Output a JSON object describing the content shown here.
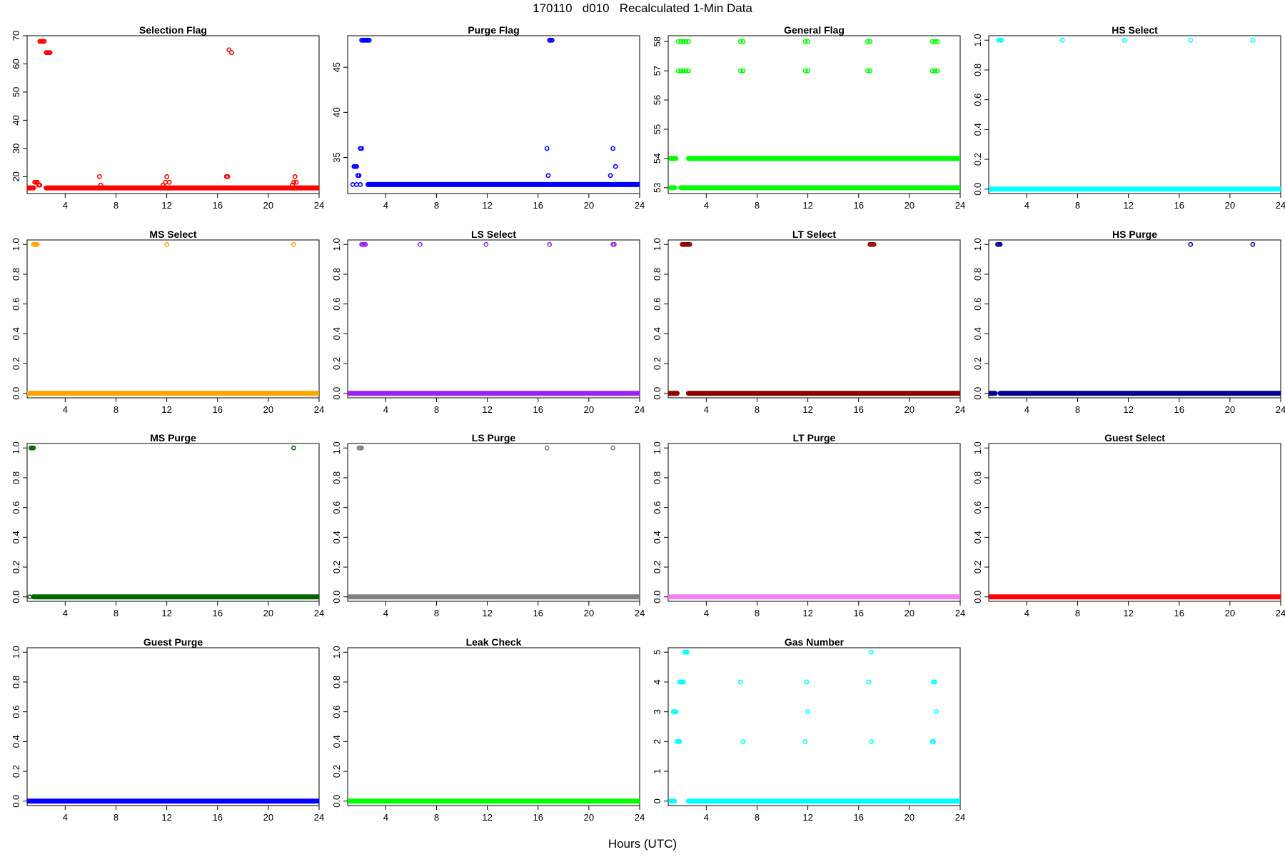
{
  "page": {
    "title": "170110   d010   Recalculated 1-Min Data",
    "x_caption": "Hours (UTC)"
  },
  "chart_data": [
    {
      "type": "scatter",
      "title": "Selection Flag",
      "color": "#ff0000",
      "xlim": [
        1,
        24
      ],
      "ylim": [
        14,
        70
      ],
      "xticks": [
        4,
        8,
        12,
        16,
        20,
        24
      ],
      "yticks": [
        20,
        30,
        40,
        50,
        60,
        70
      ],
      "baseline": {
        "y": 16,
        "x_ranges": [
          [
            1.1,
            1.5
          ],
          [
            2.5,
            24
          ]
        ]
      },
      "points": [
        [
          2.0,
          68
        ],
        [
          2.1,
          68
        ],
        [
          2.2,
          68
        ],
        [
          2.3,
          68
        ],
        [
          2.35,
          68
        ],
        [
          2.5,
          64
        ],
        [
          2.6,
          64
        ],
        [
          2.7,
          64
        ],
        [
          2.8,
          64
        ],
        [
          1.6,
          18
        ],
        [
          1.7,
          18
        ],
        [
          1.8,
          18
        ],
        [
          1.9,
          17
        ],
        [
          2.0,
          17
        ],
        [
          6.7,
          20
        ],
        [
          6.8,
          17
        ],
        [
          11.7,
          17
        ],
        [
          11.9,
          18
        ],
        [
          12.0,
          20
        ],
        [
          12.2,
          18
        ],
        [
          16.7,
          20
        ],
        [
          16.8,
          20
        ],
        [
          16.9,
          65
        ],
        [
          17.1,
          64
        ],
        [
          21.9,
          17
        ],
        [
          22.0,
          18
        ],
        [
          22.1,
          20
        ],
        [
          22.2,
          18
        ]
      ]
    },
    {
      "type": "scatter",
      "title": "Purge Flag",
      "color": "#0000ff",
      "xlim": [
        1,
        24
      ],
      "ylim": [
        31,
        48.5
      ],
      "xticks": [
        4,
        8,
        12,
        16,
        20,
        24
      ],
      "yticks": [
        35,
        40,
        45
      ],
      "baseline": {
        "y": 32,
        "x_ranges": [
          [
            2.6,
            17.1
          ],
          [
            17.2,
            24
          ]
        ]
      },
      "points": [
        [
          2.1,
          48
        ],
        [
          2.2,
          48
        ],
        [
          2.3,
          48
        ],
        [
          2.4,
          48
        ],
        [
          2.5,
          48
        ],
        [
          2.6,
          48
        ],
        [
          2.7,
          48
        ],
        [
          16.9,
          48
        ],
        [
          17.0,
          48
        ],
        [
          17.1,
          48
        ],
        [
          1.4,
          32
        ],
        [
          1.7,
          32
        ],
        [
          2.0,
          32
        ],
        [
          1.5,
          34
        ],
        [
          1.6,
          34
        ],
        [
          1.7,
          34
        ],
        [
          1.8,
          33
        ],
        [
          1.9,
          33
        ],
        [
          2.0,
          36
        ],
        [
          2.1,
          36
        ],
        [
          16.7,
          36
        ],
        [
          16.8,
          33
        ],
        [
          21.7,
          33
        ],
        [
          21.9,
          36
        ],
        [
          22.1,
          34
        ]
      ]
    },
    {
      "type": "scatter",
      "title": "General Flag",
      "color": "#00ff00",
      "xlim": [
        1,
        24
      ],
      "ylim": [
        52.8,
        58.2
      ],
      "xticks": [
        4,
        8,
        12,
        16,
        20,
        24
      ],
      "yticks": [
        53,
        54,
        55,
        56,
        57,
        58
      ],
      "baseline": {
        "y": 53,
        "x_ranges": [
          [
            1.2,
            1.5
          ],
          [
            2.0,
            24
          ]
        ]
      },
      "band_54": {
        "y": 54,
        "x_ranges": [
          [
            1.2,
            1.6
          ],
          [
            2.6,
            24
          ]
        ]
      },
      "points": [
        [
          1.8,
          58
        ],
        [
          2.0,
          58
        ],
        [
          2.2,
          58
        ],
        [
          2.4,
          58
        ],
        [
          2.6,
          58
        ],
        [
          6.7,
          58
        ],
        [
          6.9,
          58
        ],
        [
          11.8,
          58
        ],
        [
          12.0,
          58
        ],
        [
          16.7,
          58
        ],
        [
          16.9,
          58
        ],
        [
          21.8,
          58
        ],
        [
          22.0,
          58
        ],
        [
          22.2,
          58
        ],
        [
          1.8,
          57
        ],
        [
          2.0,
          57
        ],
        [
          2.2,
          57
        ],
        [
          2.4,
          57
        ],
        [
          2.6,
          57
        ],
        [
          6.7,
          57
        ],
        [
          6.9,
          57
        ],
        [
          11.8,
          57
        ],
        [
          12.0,
          57
        ],
        [
          16.7,
          57
        ],
        [
          16.9,
          57
        ],
        [
          21.8,
          57
        ],
        [
          22.0,
          57
        ],
        [
          22.2,
          57
        ]
      ]
    },
    {
      "type": "scatter",
      "title": "HS Select",
      "color": "#00ffff",
      "xlim": [
        1,
        24
      ],
      "ylim": [
        -0.03,
        1.03
      ],
      "xticks": [
        4,
        8,
        12,
        16,
        20,
        24
      ],
      "yticks": [
        0.0,
        0.2,
        0.4,
        0.6,
        0.8,
        1.0
      ],
      "baseline": {
        "y": 0,
        "x_ranges": [
          [
            1.1,
            24
          ]
        ]
      },
      "points": [
        [
          1.8,
          1
        ],
        [
          1.9,
          1
        ],
        [
          2.0,
          1
        ],
        [
          6.8,
          1
        ],
        [
          11.7,
          1
        ],
        [
          16.9,
          1
        ],
        [
          21.8,
          1
        ]
      ]
    },
    {
      "type": "scatter",
      "title": "MS Select",
      "color": "#ffa500",
      "xlim": [
        1,
        24
      ],
      "ylim": [
        -0.03,
        1.03
      ],
      "xticks": [
        4,
        8,
        12,
        16,
        20,
        24
      ],
      "yticks": [
        0.0,
        0.2,
        0.4,
        0.6,
        0.8,
        1.0
      ],
      "baseline": {
        "y": 0,
        "x_ranges": [
          [
            1.1,
            24
          ]
        ]
      },
      "points": [
        [
          1.5,
          1
        ],
        [
          1.6,
          1
        ],
        [
          1.7,
          1
        ],
        [
          1.8,
          1
        ],
        [
          12.0,
          1
        ],
        [
          22.0,
          1
        ]
      ]
    },
    {
      "type": "scatter",
      "title": "LS Select",
      "color": "#a020f0",
      "xlim": [
        1,
        24
      ],
      "ylim": [
        -0.03,
        1.03
      ],
      "xticks": [
        4,
        8,
        12,
        16,
        20,
        24
      ],
      "yticks": [
        0.0,
        0.2,
        0.4,
        0.6,
        0.8,
        1.0
      ],
      "baseline": {
        "y": 0,
        "x_ranges": [
          [
            1.1,
            24
          ]
        ]
      },
      "points": [
        [
          2.1,
          1
        ],
        [
          2.2,
          1
        ],
        [
          2.3,
          1
        ],
        [
          2.4,
          1
        ],
        [
          6.7,
          1
        ],
        [
          11.9,
          1
        ],
        [
          16.9,
          1
        ],
        [
          21.9,
          1
        ],
        [
          22.0,
          1
        ]
      ]
    },
    {
      "type": "scatter",
      "title": "LT Select",
      "color": "#8b0000",
      "xlim": [
        1,
        24
      ],
      "ylim": [
        -0.03,
        1.03
      ],
      "xticks": [
        4,
        8,
        12,
        16,
        20,
        24
      ],
      "yticks": [
        0.0,
        0.2,
        0.4,
        0.6,
        0.8,
        1.0
      ],
      "baseline": {
        "y": 0,
        "x_ranges": [
          [
            1.1,
            1.7
          ],
          [
            2.6,
            24
          ]
        ]
      },
      "points": [
        [
          2.1,
          1
        ],
        [
          2.2,
          1
        ],
        [
          2.3,
          1
        ],
        [
          2.4,
          1
        ],
        [
          2.5,
          1
        ],
        [
          2.6,
          1
        ],
        [
          2.7,
          1
        ],
        [
          16.9,
          1
        ],
        [
          17.0,
          1
        ],
        [
          17.1,
          1
        ],
        [
          17.2,
          1
        ]
      ]
    },
    {
      "type": "scatter",
      "title": "HS Purge",
      "color": "#00008b",
      "xlim": [
        1,
        24
      ],
      "ylim": [
        -0.03,
        1.03
      ],
      "xticks": [
        4,
        8,
        12,
        16,
        20,
        24
      ],
      "yticks": [
        0.0,
        0.2,
        0.4,
        0.6,
        0.8,
        1.0
      ],
      "baseline": {
        "y": 0,
        "x_ranges": [
          [
            1.1,
            1.5
          ],
          [
            1.9,
            24
          ]
        ]
      },
      "points": [
        [
          1.7,
          1
        ],
        [
          1.8,
          1
        ],
        [
          1.9,
          1
        ],
        [
          16.9,
          1
        ],
        [
          21.8,
          1
        ]
      ]
    },
    {
      "type": "scatter",
      "title": "MS Purge",
      "color": "#006400",
      "xlim": [
        1,
        24
      ],
      "ylim": [
        -0.03,
        1.03
      ],
      "xticks": [
        4,
        8,
        12,
        16,
        20,
        24
      ],
      "yticks": [
        0.0,
        0.2,
        0.4,
        0.6,
        0.8,
        1.0
      ],
      "baseline": {
        "y": 0,
        "x_ranges": [
          [
            1.5,
            24
          ]
        ]
      },
      "points": [
        [
          1.2,
          0
        ],
        [
          1.3,
          1
        ],
        [
          1.4,
          1
        ],
        [
          1.5,
          1
        ],
        [
          22.0,
          1
        ]
      ]
    },
    {
      "type": "scatter",
      "title": "LS Purge",
      "color": "#808080",
      "xlim": [
        1,
        24
      ],
      "ylim": [
        -0.03,
        1.03
      ],
      "xticks": [
        4,
        8,
        12,
        16,
        20,
        24
      ],
      "yticks": [
        0.0,
        0.2,
        0.4,
        0.6,
        0.8,
        1.0
      ],
      "baseline": {
        "y": 0,
        "x_ranges": [
          [
            1.1,
            24
          ]
        ]
      },
      "points": [
        [
          1.9,
          1
        ],
        [
          2.0,
          1
        ],
        [
          2.1,
          1
        ],
        [
          16.7,
          1
        ],
        [
          21.9,
          1
        ]
      ]
    },
    {
      "type": "scatter",
      "title": "LT Purge",
      "color": "#ee82ee",
      "xlim": [
        1,
        24
      ],
      "ylim": [
        -0.03,
        1.03
      ],
      "xticks": [
        4,
        8,
        12,
        16,
        20,
        24
      ],
      "yticks": [
        0.0,
        0.2,
        0.4,
        0.6,
        0.8,
        1.0
      ],
      "baseline": {
        "y": 0,
        "x_ranges": [
          [
            1.1,
            24
          ]
        ]
      },
      "points": []
    },
    {
      "type": "scatter",
      "title": "Guest Select",
      "color": "#ff0000",
      "xlim": [
        1,
        24
      ],
      "ylim": [
        -0.03,
        1.03
      ],
      "xticks": [
        4,
        8,
        12,
        16,
        20,
        24
      ],
      "yticks": [
        0.0,
        0.2,
        0.4,
        0.6,
        0.8,
        1.0
      ],
      "baseline": {
        "y": 0,
        "x_ranges": [
          [
            1.1,
            24
          ]
        ]
      },
      "points": []
    },
    {
      "type": "scatter",
      "title": "Guest Purge",
      "color": "#0000ff",
      "xlim": [
        1,
        24
      ],
      "ylim": [
        -0.03,
        1.03
      ],
      "xticks": [
        4,
        8,
        12,
        16,
        20,
        24
      ],
      "yticks": [
        0.0,
        0.2,
        0.4,
        0.6,
        0.8,
        1.0
      ],
      "baseline": {
        "y": 0,
        "x_ranges": [
          [
            1.1,
            24
          ]
        ]
      },
      "points": []
    },
    {
      "type": "scatter",
      "title": "Leak Check",
      "color": "#00ff00",
      "xlim": [
        1,
        24
      ],
      "ylim": [
        -0.03,
        1.03
      ],
      "xticks": [
        4,
        8,
        12,
        16,
        20,
        24
      ],
      "yticks": [
        0.0,
        0.2,
        0.4,
        0.6,
        0.8,
        1.0
      ],
      "baseline": {
        "y": 0,
        "x_ranges": [
          [
            1.1,
            24
          ]
        ]
      },
      "points": []
    },
    {
      "type": "scatter",
      "title": "Gas Number",
      "color": "#00ffff",
      "xlim": [
        1,
        24
      ],
      "ylim": [
        -0.15,
        5.15
      ],
      "xticks": [
        4,
        8,
        12,
        16,
        20,
        24
      ],
      "yticks": [
        0,
        1,
        2,
        3,
        4,
        5
      ],
      "baseline": {
        "y": 0,
        "x_ranges": [
          [
            1.2,
            1.5
          ],
          [
            2.6,
            24
          ]
        ]
      },
      "points": [
        [
          2.3,
          5
        ],
        [
          2.4,
          5
        ],
        [
          2.5,
          5
        ],
        [
          17.0,
          5
        ],
        [
          1.9,
          4
        ],
        [
          2.0,
          4
        ],
        [
          2.1,
          4
        ],
        [
          2.2,
          4
        ],
        [
          6.7,
          4
        ],
        [
          11.9,
          4
        ],
        [
          16.8,
          4
        ],
        [
          21.9,
          4
        ],
        [
          22.0,
          4
        ],
        [
          1.4,
          3
        ],
        [
          1.5,
          3
        ],
        [
          1.6,
          3
        ],
        [
          12.0,
          3
        ],
        [
          22.1,
          3
        ],
        [
          1.7,
          2
        ],
        [
          1.8,
          2
        ],
        [
          1.9,
          2
        ],
        [
          6.9,
          2
        ],
        [
          11.8,
          2
        ],
        [
          17.0,
          2
        ],
        [
          21.8,
          2
        ],
        [
          21.9,
          2
        ]
      ]
    }
  ]
}
